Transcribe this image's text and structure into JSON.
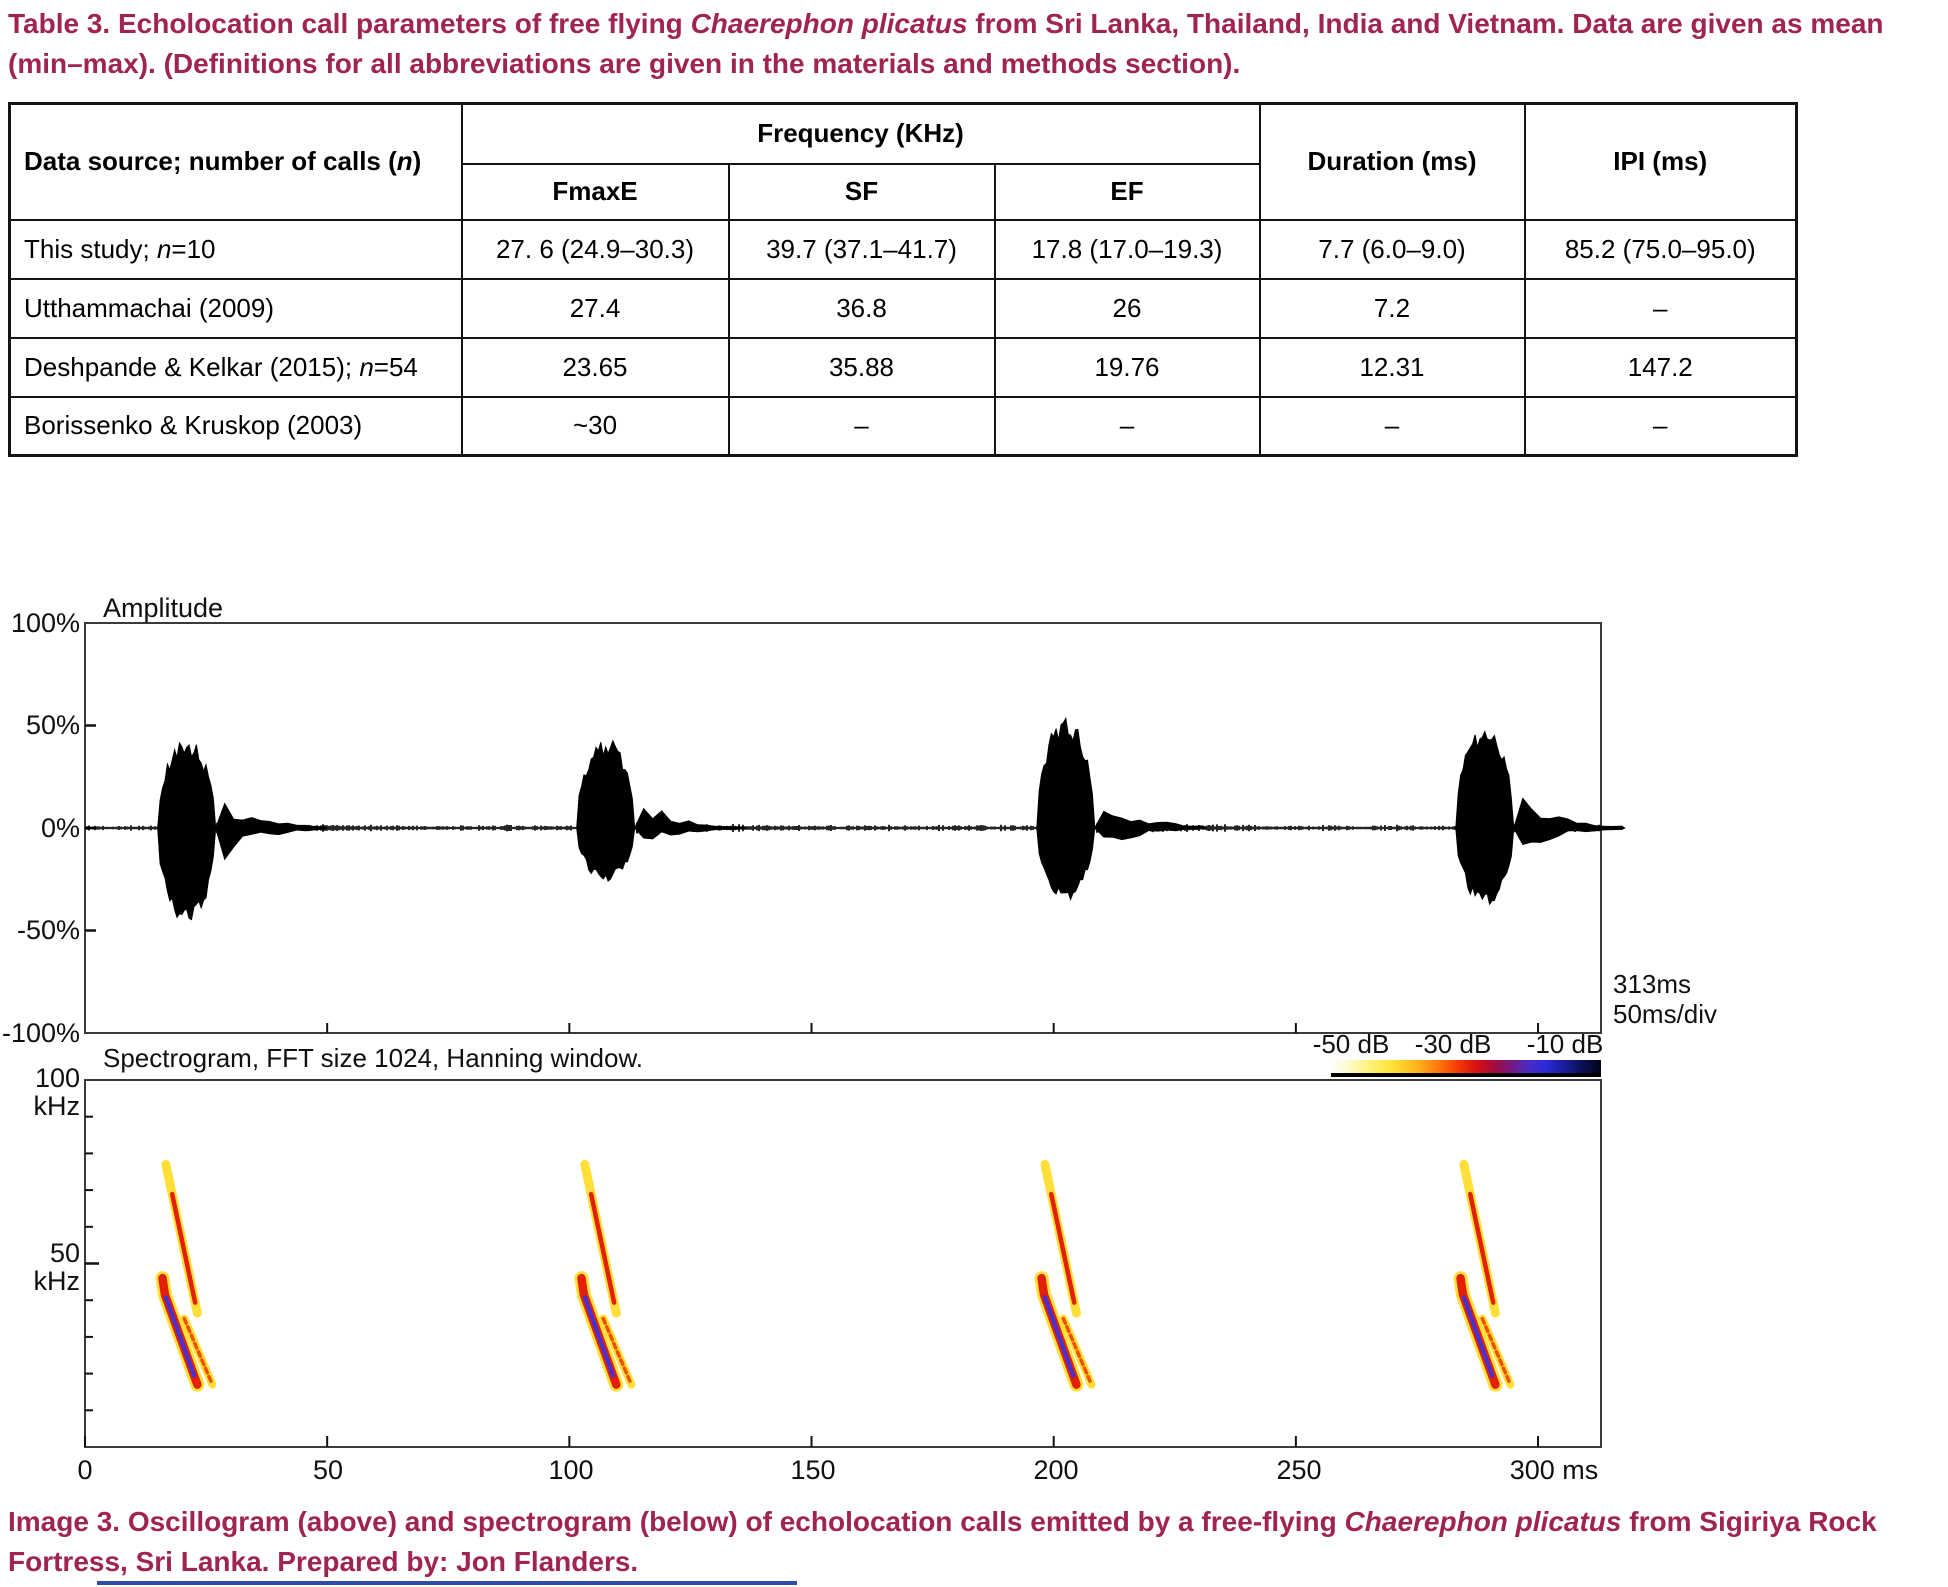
{
  "colors": {
    "caption_maroon": "#a02451",
    "table_border": "#141414",
    "axis_frame": "#3a3a3a",
    "waveform": "#000000",
    "streak_yellow": "#ffdf38",
    "streak_red": "#e32005",
    "streak_blue": "#4633cf",
    "streak_orange": "#f04f00",
    "footer_rule_blue": "#2f4da8"
  },
  "table_caption": {
    "lines": [
      [
        {
          "t": "Table 3. Echolocation call parameters of free flying "
        },
        {
          "t": "Chaerephon plicatus",
          "i": true
        },
        {
          "t": " from Sri Lanka, Thailand, India and Vietnam. Data are given as mean"
        }
      ],
      [
        {
          "t": "(min–max). (Definitions for all abbreviations are given in the materials and methods section)."
        }
      ]
    ]
  },
  "table": {
    "col1_header": [
      {
        "t": "Data source; number of calls ("
      },
      {
        "t": "n",
        "i": true
      },
      {
        "t": ")"
      }
    ],
    "group_header": "Frequency (KHz)",
    "sub_headers": [
      "FmaxE",
      "SF",
      "EF"
    ],
    "duration_header": "Duration (ms)",
    "ipi_header": "IPI (ms)",
    "rows": [
      {
        "source": [
          {
            "t": "This study; "
          },
          {
            "t": "n",
            "i": true
          },
          {
            "t": "=10"
          }
        ],
        "values": [
          "27. 6 (24.9–30.3)",
          "39.7 (37.1–41.7)",
          "17.8 (17.0–19.3)",
          "7.7 (6.0–9.0)",
          "85.2 (75.0–95.0)"
        ]
      },
      {
        "source": [
          {
            "t": "Utthammachai (2009)"
          }
        ],
        "values": [
          "27.4",
          "36.8",
          "26",
          "7.2",
          "–"
        ]
      },
      {
        "source": [
          {
            "t": "Deshpande & Kelkar (2015); "
          },
          {
            "t": "n",
            "i": true
          },
          {
            "t": "=54"
          }
        ],
        "values": [
          "23.65",
          "35.88",
          "19.76",
          "12.31",
          "147.2"
        ]
      },
      {
        "source": [
          {
            "t": "Borissenko & Kruskop (2003)"
          }
        ],
        "values": [
          "~30",
          "–",
          "–",
          "–",
          "–"
        ]
      }
    ]
  },
  "image_caption": {
    "lines": [
      [
        {
          "t": "Image 3. Oscillogram (above) and spectrogram (below) of echolocation calls emitted by a free-flying "
        },
        {
          "t": "Chaerephon plicatus",
          "i": true
        },
        {
          "t": " from Sigiriya Rock"
        }
      ],
      [
        {
          "t": "Fortress, Sri Lanka. Prepared by: Jon Flanders."
        }
      ]
    ]
  },
  "chart_data": [
    {
      "type": "line",
      "title": "Amplitude",
      "x_unit": "ms",
      "x_range": [
        0,
        313
      ],
      "total_duration_label": "313ms",
      "x_div_note": "50ms/div",
      "y_unit": "percent amplitude",
      "y_range": [
        -100,
        100
      ],
      "y_ticks": [
        "100%",
        "50%",
        "0%",
        "-50%",
        "-100%"
      ],
      "grid": false,
      "pulses": [
        {
          "center_ms": 21,
          "peak_pct": 41,
          "trough_pct": -45
        },
        {
          "center_ms": 107.5,
          "peak_pct": 41,
          "trough_pct": -25
        },
        {
          "center_ms": 202.5,
          "peak_pct": 51,
          "trough_pct": -33
        },
        {
          "center_ms": 289,
          "peak_pct": 47,
          "trough_pct": -36
        }
      ],
      "note": "Four echolocation call pulses over low-level background noise; inter-pulse interval about 85-95 ms."
    },
    {
      "type": "heatmap",
      "title": "Spectrogram, FFT size 1024, Hanning window.",
      "x_unit": "ms",
      "x_range": [
        0,
        313
      ],
      "x_ticks_ms": [
        0,
        50,
        100,
        150,
        200,
        250,
        300
      ],
      "x_tick_labels": [
        "0",
        "50",
        "100",
        "150",
        "200",
        "250",
        "300 ms"
      ],
      "y_unit": "kHz",
      "y_range": [
        0,
        100
      ],
      "y_tick_labels": [
        "100 kHz",
        "50 kHz"
      ],
      "y_minor_ticks_khz": [
        10,
        20,
        30,
        40,
        50,
        60,
        70,
        80,
        90
      ],
      "intensity_scale": {
        "labels": [
          "-50 dB",
          "-30 dB",
          "-10 dB"
        ],
        "range_db": [
          -50,
          -10
        ]
      },
      "calls": [
        {
          "center_ms": 21,
          "fundamental": {
            "from_khz": 46,
            "to_khz": 17
          },
          "harmonic": {
            "from_khz": 77,
            "to_khz": 36.5
          },
          "echo": {
            "from_khz": 35,
            "to_khz": 17
          }
        },
        {
          "center_ms": 107.5,
          "fundamental": {
            "from_khz": 46,
            "to_khz": 17
          },
          "harmonic": {
            "from_khz": 77,
            "to_khz": 36.5
          },
          "echo": {
            "from_khz": 35,
            "to_khz": 17
          }
        },
        {
          "center_ms": 202.5,
          "fundamental": {
            "from_khz": 46,
            "to_khz": 17
          },
          "harmonic": {
            "from_khz": 77,
            "to_khz": 36.5
          },
          "echo": {
            "from_khz": 35,
            "to_khz": 17
          }
        },
        {
          "center_ms": 289,
          "fundamental": {
            "from_khz": 46,
            "to_khz": 17
          },
          "harmonic": {
            "from_khz": 77,
            "to_khz": 36.5
          },
          "echo": {
            "from_khz": 35,
            "to_khz": 17
          }
        }
      ],
      "note": "Downward frequency-modulated calls: fundamental sweep ~46 to 17 kHz (strongest energy, blue core), second harmonic ~77 to 36 kHz, trailing echo component ~35 to 17 kHz."
    }
  ]
}
